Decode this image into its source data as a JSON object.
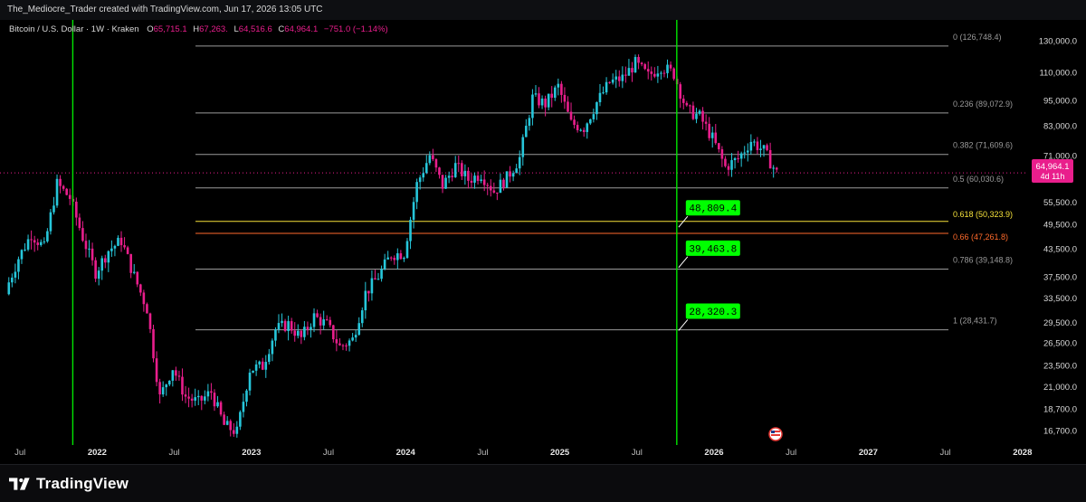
{
  "header": {
    "attribution": "The_Mediocre_Trader created with TradingView.com, Jun 17, 2026 13:05 UTC"
  },
  "legend": {
    "symbol": "Bitcoin / U.S. Dollar · 1W · Kraken",
    "open_label": "O",
    "open_value": "65,715.1",
    "high_label": "H",
    "high_value": "67,263.",
    "low_label": "L",
    "low_value": "64,516.6",
    "close_label": "C",
    "close_value": "64,964.1",
    "change": "−751.0 (−1.14%)"
  },
  "current_price": {
    "value": "64,964.1",
    "countdown": "4d 11h"
  },
  "price_axis": {
    "ticks": [
      "130,000.0",
      "110,000.0",
      "95,000.0",
      "83,000.0",
      "71,000.0",
      "55,500.0",
      "49,500.0",
      "43,500.0",
      "37,500.0",
      "33,500.0",
      "29,500.0",
      "26,500.0",
      "23,500.0",
      "21,000.0",
      "18,700.0",
      "16,700.0"
    ]
  },
  "time_axis": {
    "ticks": [
      {
        "label": "Jul",
        "year": false
      },
      {
        "label": "2022",
        "year": true
      },
      {
        "label": "Jul",
        "year": false
      },
      {
        "label": "2023",
        "year": true
      },
      {
        "label": "Jul",
        "year": false
      },
      {
        "label": "2024",
        "year": true
      },
      {
        "label": "Jul",
        "year": false
      },
      {
        "label": "2025",
        "year": true
      },
      {
        "label": "Jul",
        "year": false
      },
      {
        "label": "2026",
        "year": true
      },
      {
        "label": "Jul",
        "year": false
      },
      {
        "label": "2027",
        "year": true
      },
      {
        "label": "Jul",
        "year": false
      },
      {
        "label": "2028",
        "year": true
      }
    ]
  },
  "fib_levels": [
    {
      "label": "0 (126,748.4)",
      "price": 126748.4,
      "color": "#9a9a9a"
    },
    {
      "label": "0.236 (89,072.9)",
      "price": 89072.9,
      "color": "#9a9a9a"
    },
    {
      "label": "0.382 (71,609.6)",
      "price": 71609.6,
      "color": "#9a9a9a"
    },
    {
      "label": "0.5 (60,030.6)",
      "price": 60030.6,
      "color": "#9a9a9a"
    },
    {
      "label": "0.618 (50,323.9)",
      "price": 50323.9,
      "color": "#f5e13a"
    },
    {
      "label": "0.66 (47,261.8)",
      "price": 47261.8,
      "color": "#ff6a2b"
    },
    {
      "label": "0.786 (39,148.8)",
      "price": 39148.8,
      "color": "#9a9a9a"
    },
    {
      "label": "1 (28,431.7)",
      "price": 28431.7,
      "color": "#9a9a9a"
    }
  ],
  "callouts": [
    "48,809.4",
    "39,463.8",
    "28,320.3"
  ],
  "branding": {
    "name": "TradingView"
  },
  "colors": {
    "up": "#26c6da",
    "down": "#e91e8c",
    "vertical_marker": "#00e600",
    "callout": "#00ff00",
    "price_tag": "#e91e8c"
  },
  "chart_data": {
    "type": "candlestick",
    "title": "Bitcoin / U.S. Dollar · 1W · Kraken",
    "interval": "1W",
    "scale": "log",
    "ylim": [
      15500,
      140000
    ],
    "x_start": "2021-06",
    "x_end": "2028-01",
    "vertical_markers": [
      "2021-11",
      "2025-10"
    ],
    "series": [
      {
        "name": "BTC/USD",
        "monthly_close": [
          {
            "date": "2021-06",
            "close": 35000
          },
          {
            "date": "2021-07",
            "close": 41500
          },
          {
            "date": "2021-08",
            "close": 47100
          },
          {
            "date": "2021-09",
            "close": 43800
          },
          {
            "date": "2021-10",
            "close": 61300
          },
          {
            "date": "2021-11",
            "close": 57000
          },
          {
            "date": "2021-12",
            "close": 46300
          },
          {
            "date": "2022-01",
            "close": 38500
          },
          {
            "date": "2022-02",
            "close": 43200
          },
          {
            "date": "2022-03",
            "close": 45500
          },
          {
            "date": "2022-04",
            "close": 37700
          },
          {
            "date": "2022-05",
            "close": 31800
          },
          {
            "date": "2022-06",
            "close": 19900
          },
          {
            "date": "2022-07",
            "close": 23300
          },
          {
            "date": "2022-08",
            "close": 20000
          },
          {
            "date": "2022-09",
            "close": 19400
          },
          {
            "date": "2022-10",
            "close": 20500
          },
          {
            "date": "2022-11",
            "close": 17200
          },
          {
            "date": "2022-12",
            "close": 16600
          },
          {
            "date": "2023-01",
            "close": 23100
          },
          {
            "date": "2023-02",
            "close": 23500
          },
          {
            "date": "2023-03",
            "close": 28500
          },
          {
            "date": "2023-04",
            "close": 29300
          },
          {
            "date": "2023-05",
            "close": 27200
          },
          {
            "date": "2023-06",
            "close": 30500
          },
          {
            "date": "2023-07",
            "close": 29200
          },
          {
            "date": "2023-08",
            "close": 26000
          },
          {
            "date": "2023-09",
            "close": 27000
          },
          {
            "date": "2023-10",
            "close": 34500
          },
          {
            "date": "2023-11",
            "close": 37700
          },
          {
            "date": "2023-12",
            "close": 42300
          },
          {
            "date": "2024-01",
            "close": 42600
          },
          {
            "date": "2024-02",
            "close": 61200
          },
          {
            "date": "2024-03",
            "close": 71300
          },
          {
            "date": "2024-04",
            "close": 60700
          },
          {
            "date": "2024-05",
            "close": 67500
          },
          {
            "date": "2024-06",
            "close": 62700
          },
          {
            "date": "2024-07",
            "close": 64600
          },
          {
            "date": "2024-08",
            "close": 59000
          },
          {
            "date": "2024-09",
            "close": 63300
          },
          {
            "date": "2024-10",
            "close": 70300
          },
          {
            "date": "2024-11",
            "close": 96400
          },
          {
            "date": "2024-12",
            "close": 93400
          },
          {
            "date": "2025-01",
            "close": 102400
          },
          {
            "date": "2025-02",
            "close": 84300
          },
          {
            "date": "2025-03",
            "close": 82500
          },
          {
            "date": "2025-04",
            "close": 94200
          },
          {
            "date": "2025-05",
            "close": 104600
          },
          {
            "date": "2025-06",
            "close": 107100
          },
          {
            "date": "2025-07",
            "close": 115700
          },
          {
            "date": "2025-08",
            "close": 108200
          },
          {
            "date": "2025-09",
            "close": 114000
          },
          {
            "date": "2025-10",
            "close": 109500
          },
          {
            "date": "2025-11",
            "close": 90400
          },
          {
            "date": "2025-12",
            "close": 87500
          },
          {
            "date": "2026-01",
            "close": 78000
          },
          {
            "date": "2026-02",
            "close": 67000
          },
          {
            "date": "2026-03",
            "close": 70000
          },
          {
            "date": "2026-04",
            "close": 77000
          },
          {
            "date": "2026-05",
            "close": 73000
          },
          {
            "date": "2026-06",
            "close": 64964.1
          }
        ]
      }
    ]
  }
}
